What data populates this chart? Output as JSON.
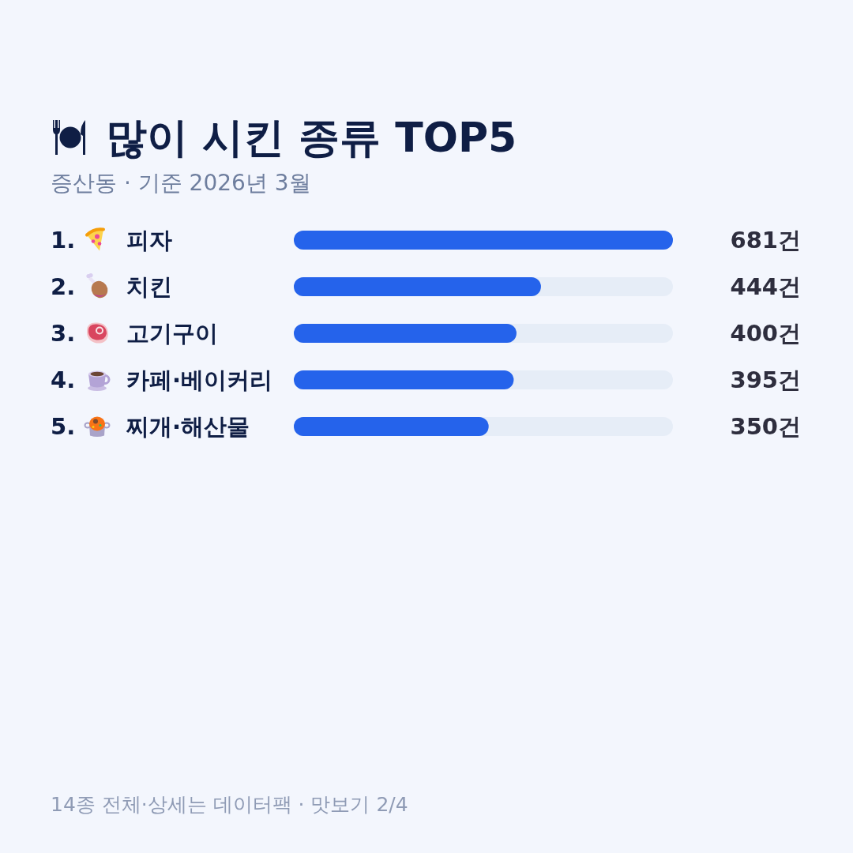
{
  "chart_data": {
    "type": "bar",
    "orientation": "horizontal",
    "title": "많이 시킨 종류 TOP5",
    "subtitle": "증산동 · 기준 2026년 3월",
    "categories": [
      "1. 피자",
      "2. 치킨",
      "3. 고기구이",
      "4. 카페·베이커리",
      "5. 찌개·해산물"
    ],
    "values": [
      681,
      444,
      400,
      395,
      350
    ],
    "color": "#2563eb",
    "value_labels": [
      "681건",
      "444건",
      "400건",
      "395건",
      "350건"
    ],
    "tick_labels": "y",
    "annotations": [
      "14종 전체·상세는 데이터팩 · 맛보기 2/4"
    ]
  }
}
